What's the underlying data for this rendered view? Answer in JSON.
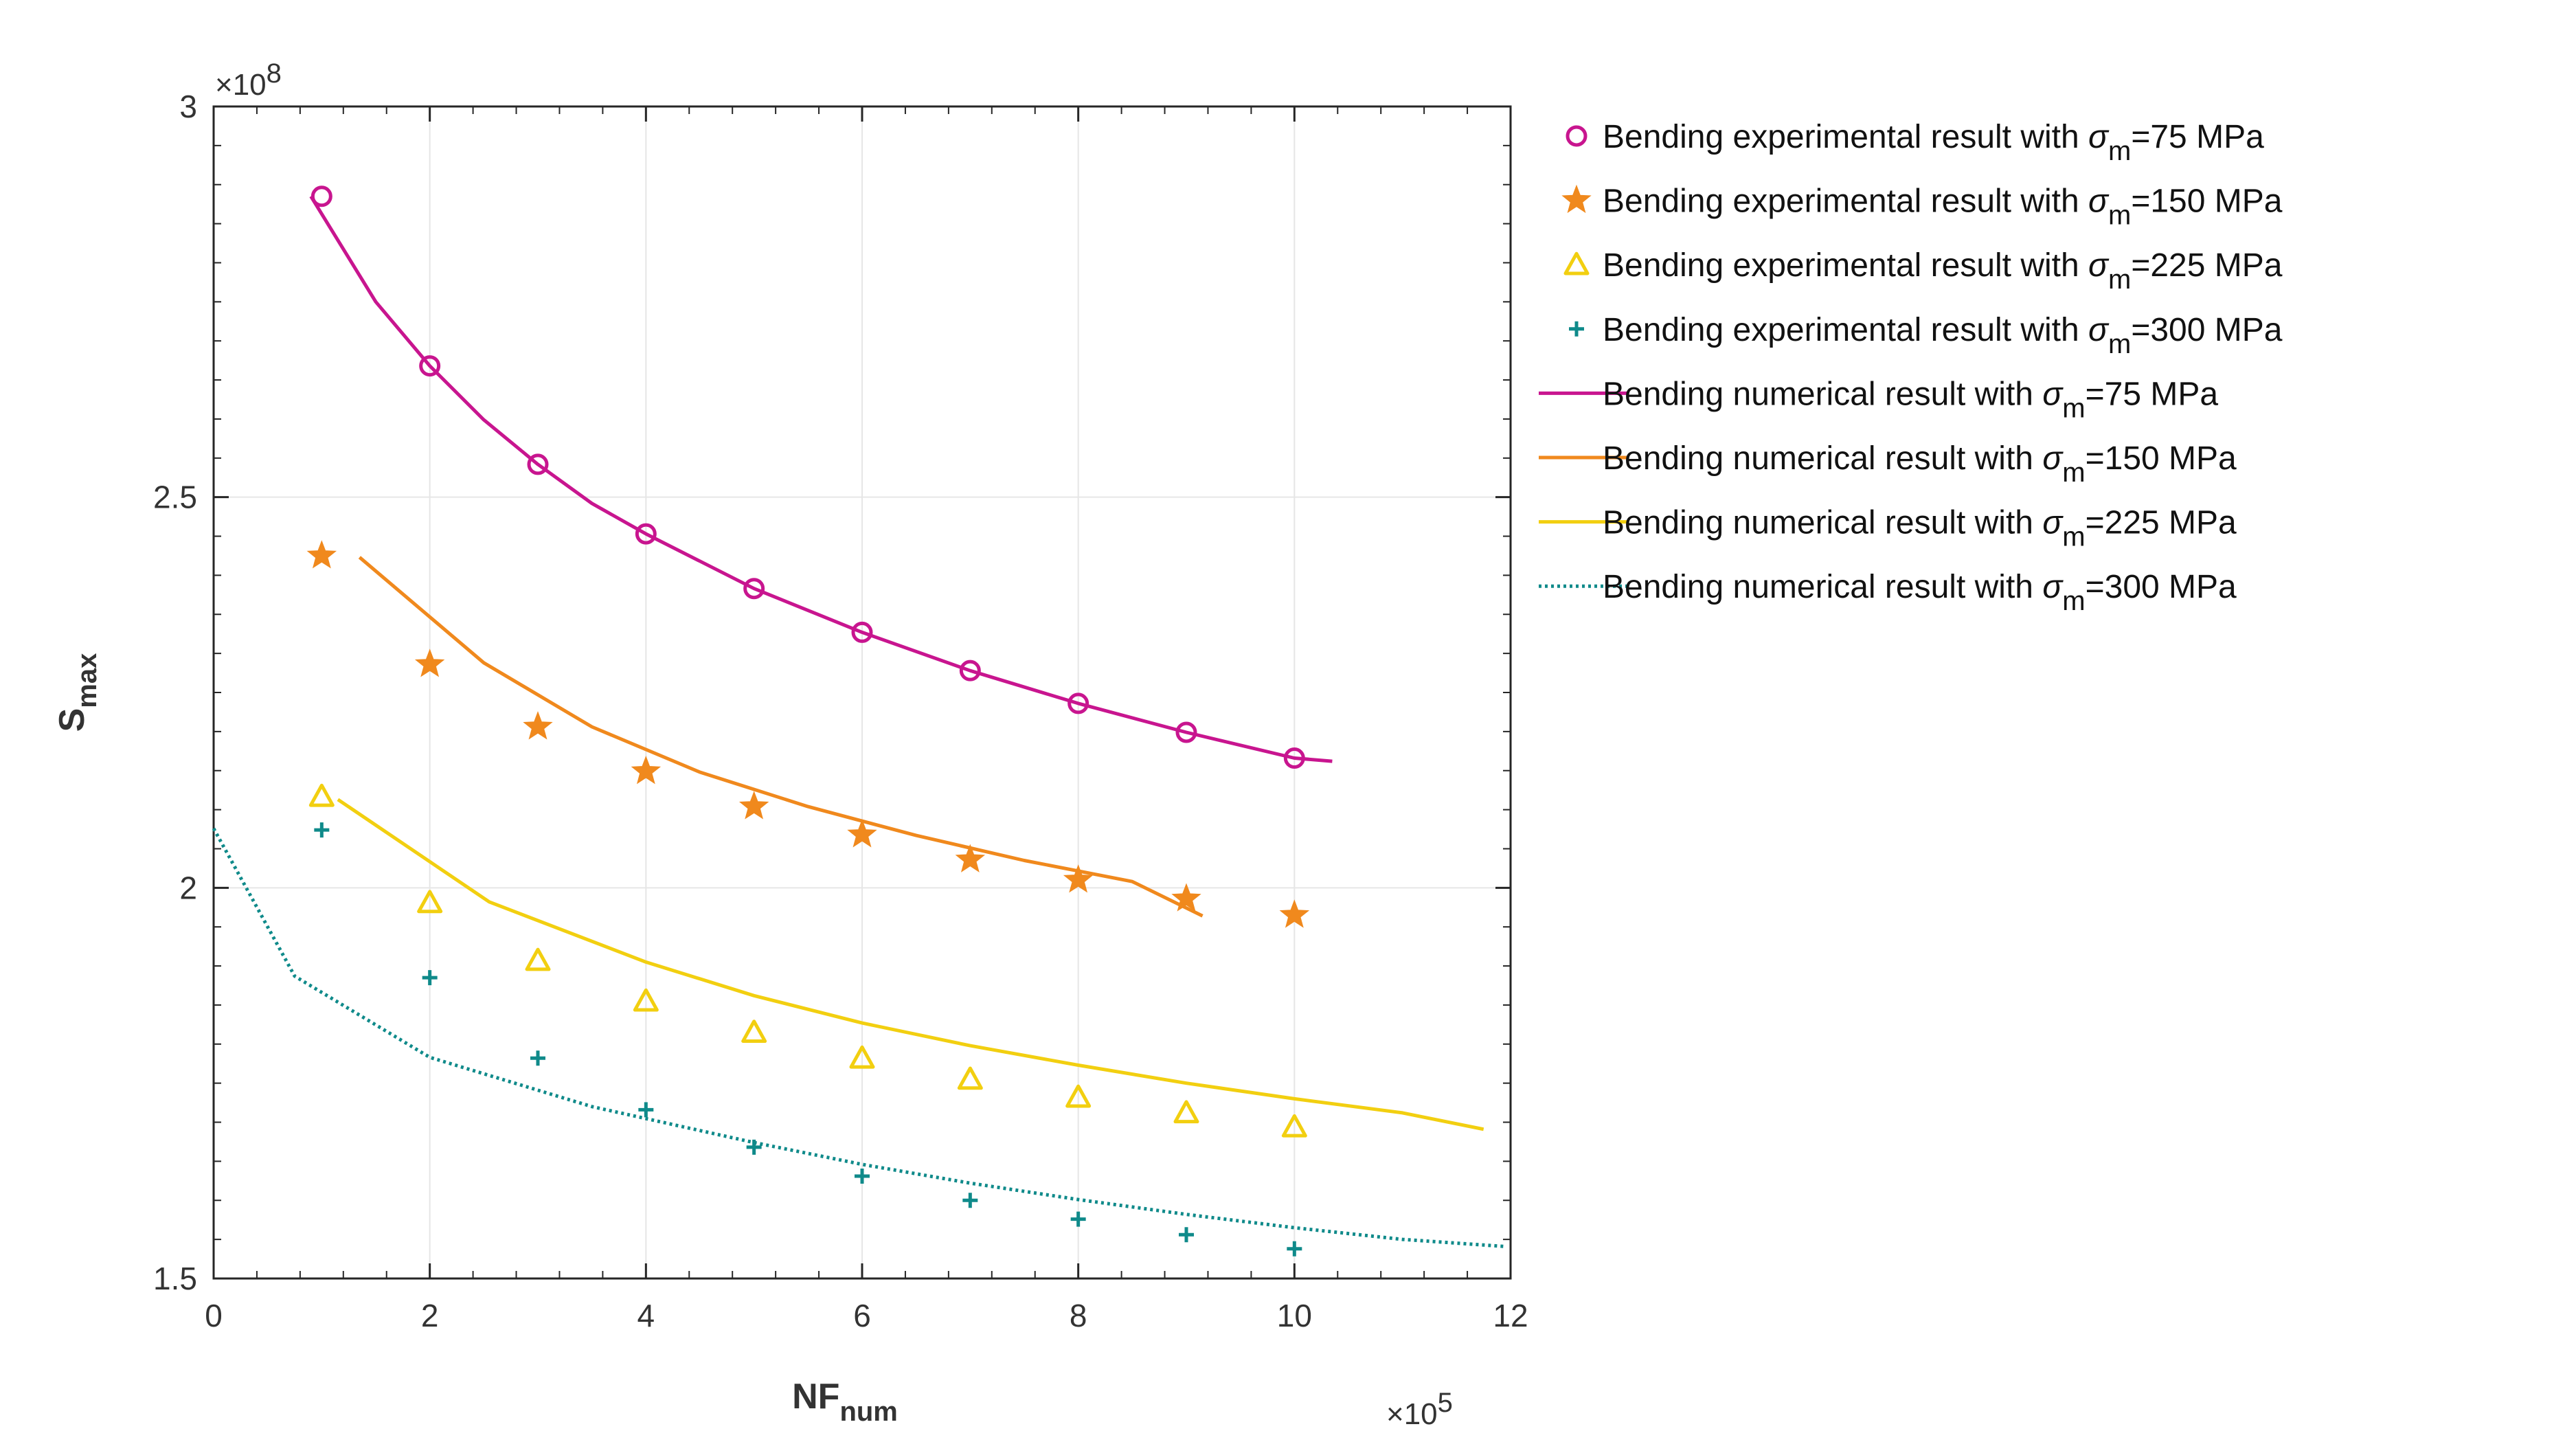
{
  "chart_data": {
    "type": "line",
    "xlabel": {
      "main": "NF",
      "sub": "num"
    },
    "ylabel": {
      "main": "S",
      "sub": "max"
    },
    "x_exponent_label": "×10",
    "x_exponent_power": "5",
    "y_exponent_label": "×10",
    "y_exponent_power": "8",
    "xlim": [
      0,
      1200000
    ],
    "ylim": [
      150000000,
      300000000
    ],
    "x_ticks": [
      0,
      200000,
      400000,
      600000,
      800000,
      1000000,
      1200000
    ],
    "x_tick_labels": [
      "0",
      "2",
      "4",
      "6",
      "8",
      "10",
      "12"
    ],
    "y_ticks": [
      150000000,
      200000000,
      250000000,
      300000000
    ],
    "y_tick_labels": [
      "1.5",
      "2",
      "2.5",
      "3"
    ],
    "grid": true,
    "legend_position": "outside-right",
    "series": [
      {
        "name_prefix": "Bending experimental result with ",
        "name_symbol": "σ",
        "name_sub": "m",
        "name_suffix": "=75 MPa",
        "kind": "marker",
        "marker": "circle",
        "color": "#c8158f",
        "x": [
          100000,
          200000,
          300000,
          400000,
          500000,
          600000,
          700000,
          800000,
          900000,
          1000000
        ],
        "y": [
          288500000,
          266800000,
          254200000,
          245300000,
          238300000,
          232700000,
          227800000,
          223600000,
          219900000,
          216600000
        ]
      },
      {
        "name_prefix": "Bending experimental result with ",
        "name_symbol": "σ",
        "name_sub": "m",
        "name_suffix": "=150 MPa",
        "kind": "marker",
        "marker": "star",
        "color": "#f0891d",
        "x": [
          100000,
          200000,
          300000,
          400000,
          500000,
          600000,
          700000,
          800000,
          900000,
          1000000
        ],
        "y": [
          242500000,
          228600000,
          220600000,
          214900000,
          210400000,
          206800000,
          203600000,
          201000000,
          198600000,
          196500000
        ]
      },
      {
        "name_prefix": "Bending experimental result with ",
        "name_symbol": "σ",
        "name_sub": "m",
        "name_suffix": "=225 MPa",
        "kind": "marker",
        "marker": "triangle",
        "color": "#f2cf10",
        "x": [
          100000,
          200000,
          300000,
          400000,
          500000,
          600000,
          700000,
          800000,
          900000,
          1000000
        ],
        "y": [
          211700000,
          198100000,
          190700000,
          185500000,
          181500000,
          178200000,
          175500000,
          173200000,
          171200000,
          169400000
        ]
      },
      {
        "name_prefix": "Bending experimental result with ",
        "name_symbol": "σ",
        "name_sub": "m",
        "name_suffix": "=300 MPa",
        "kind": "marker",
        "marker": "plus",
        "color": "#0f8a8a",
        "x": [
          100000,
          200000,
          300000,
          400000,
          500000,
          600000,
          700000,
          800000,
          900000,
          1000000
        ],
        "y": [
          207400000,
          188500000,
          178200000,
          171600000,
          166800000,
          163100000,
          160000000,
          157600000,
          155600000,
          153800000
        ]
      },
      {
        "name_prefix": "Bending numerical result with ",
        "name_symbol": "σ",
        "name_sub": "m",
        "name_suffix": "=75 MPa",
        "kind": "line",
        "dash": "solid",
        "color": "#c8158f",
        "x": [
          90000,
          150000,
          200000,
          250000,
          300000,
          350000,
          400000,
          500000,
          600000,
          700000,
          800000,
          900000,
          1000000,
          1035000
        ],
        "y": [
          288500000,
          275000000,
          266800000,
          259900000,
          254200000,
          249200000,
          245300000,
          238300000,
          232700000,
          227800000,
          223600000,
          219900000,
          216600000,
          216200000
        ]
      },
      {
        "name_prefix": "Bending numerical result with ",
        "name_symbol": "σ",
        "name_sub": "m",
        "name_suffix": "=150 MPa",
        "kind": "line",
        "dash": "solid",
        "color": "#f0891d",
        "x": [
          135000,
          250000,
          350000,
          450000,
          550000,
          650000,
          750000,
          850000,
          915000
        ],
        "y": [
          242300000,
          228800000,
          220600000,
          214800000,
          210400000,
          206700000,
          203500000,
          200800000,
          196400000
        ]
      },
      {
        "name_prefix": "Bending numerical result with ",
        "name_symbol": "σ",
        "name_sub": "m",
        "name_suffix": "=225 MPa",
        "kind": "line",
        "dash": "solid",
        "color": "#f2cf10",
        "x": [
          115000,
          255000,
          400000,
          500000,
          600000,
          700000,
          800000,
          900000,
          1000000,
          1100000,
          1175000
        ],
        "y": [
          211300000,
          198200000,
          190500000,
          186200000,
          182700000,
          179800000,
          177300000,
          175000000,
          173000000,
          171200000,
          169100000
        ]
      },
      {
        "name_prefix": "Bending numerical result with ",
        "name_symbol": "σ",
        "name_sub": "m",
        "name_suffix": "=300 MPa",
        "kind": "line",
        "dash": "dotted",
        "color": "#0f8a8a",
        "x": [
          0,
          75000,
          200000,
          350000,
          500000,
          600000,
          700000,
          800000,
          900000,
          1000000,
          1100000,
          1195000
        ],
        "y": [
          207600000,
          188700000,
          178300000,
          172000000,
          167400000,
          164600000,
          162200000,
          160100000,
          158200000,
          156500000,
          155000000,
          154100000
        ]
      }
    ]
  }
}
